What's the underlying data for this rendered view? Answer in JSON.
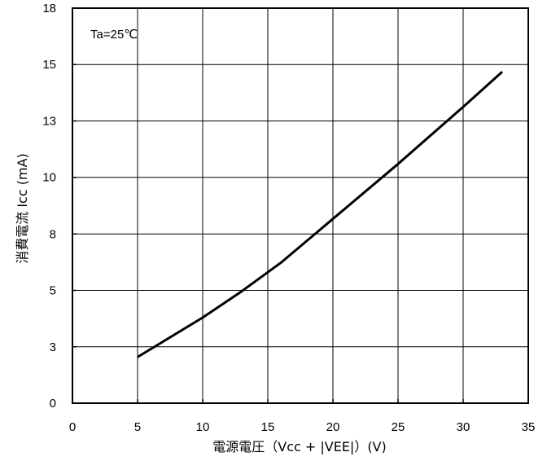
{
  "chart_data": {
    "type": "line",
    "annotation": "Ta=25℃",
    "xlabel": "電源電圧（Vcc + |VEE|）(V)",
    "ylabel": "消費電流  Icc (mA)",
    "xlim": [
      0,
      35
    ],
    "ylim": [
      0,
      18
    ],
    "x_ticks": [
      0,
      5,
      10,
      15,
      20,
      25,
      30,
      35
    ],
    "x_tick_labels": [
      "0",
      "5",
      "10",
      "15",
      "20",
      "25",
      "30",
      "35"
    ],
    "y_ticks": [
      0,
      2.57,
      5.14,
      7.71,
      10.29,
      12.86,
      15.43,
      18
    ],
    "y_tick_labels": [
      "0",
      "3",
      "5",
      "8",
      "10",
      "13",
      "15",
      "18"
    ],
    "grid": true,
    "series": [
      {
        "x": [
          5,
          10,
          13,
          16,
          20,
          25,
          30,
          33
        ],
        "y": [
          2.1,
          3.9,
          5.1,
          6.4,
          8.4,
          10.9,
          13.5,
          15.1
        ],
        "color": "#000000"
      }
    ]
  }
}
